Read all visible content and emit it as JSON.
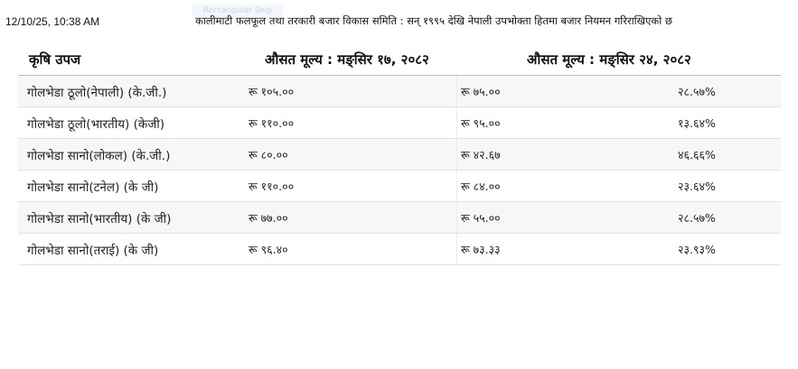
{
  "timestamp": "12/10/25, 10:38 AM",
  "page_header": "कालीमाटी फलफूल तथा तरकारी बजार विकास समिति : सन् १९९५ देखि नेपाली उपभोक्ता हितमा बजार नियमन गरिराखिएको छ",
  "snip_overlay": "Rectangular Snip",
  "table": {
    "headers": [
      "कृषि उपज",
      "औसत मूल्य : मङ्सिर १७, २०८२",
      "औसत मूल्य : मङ्सिर २४, २०८२"
    ],
    "rows": [
      {
        "name": "गोलभेडा ठूलो(नेपाली) (के.जी.)",
        "price1": "रू १०५.००",
        "price2": "रू ७५.००",
        "change": "२८.५७%"
      },
      {
        "name": "गोलभेडा ठूलो(भारतीय) (केजी)",
        "price1": "रू ११०.००",
        "price2": "रू ९५.००",
        "change": "१३.६४%"
      },
      {
        "name": "गोलभेडा सानो(लोकल) (के.जी.)",
        "price1": "रू ८०.००",
        "price2": "रू ४२.६७",
        "change": "४६.६६%"
      },
      {
        "name": "गोलभेडा सानो(टनेल) (के जी)",
        "price1": "रू ११०.००",
        "price2": "रू ८४.००",
        "change": "२३.६४%"
      },
      {
        "name": "गोलभेडा सानो(भारतीय) (के जी)",
        "price1": "रू ७७.००",
        "price2": "रू ५५.००",
        "change": "२८.५७%"
      },
      {
        "name": "गोलभेडा सानो(तराई) (के जी)",
        "price1": "रू ९६.४०",
        "price2": "रू ७३.३३",
        "change": "२३.९३%"
      }
    ]
  }
}
